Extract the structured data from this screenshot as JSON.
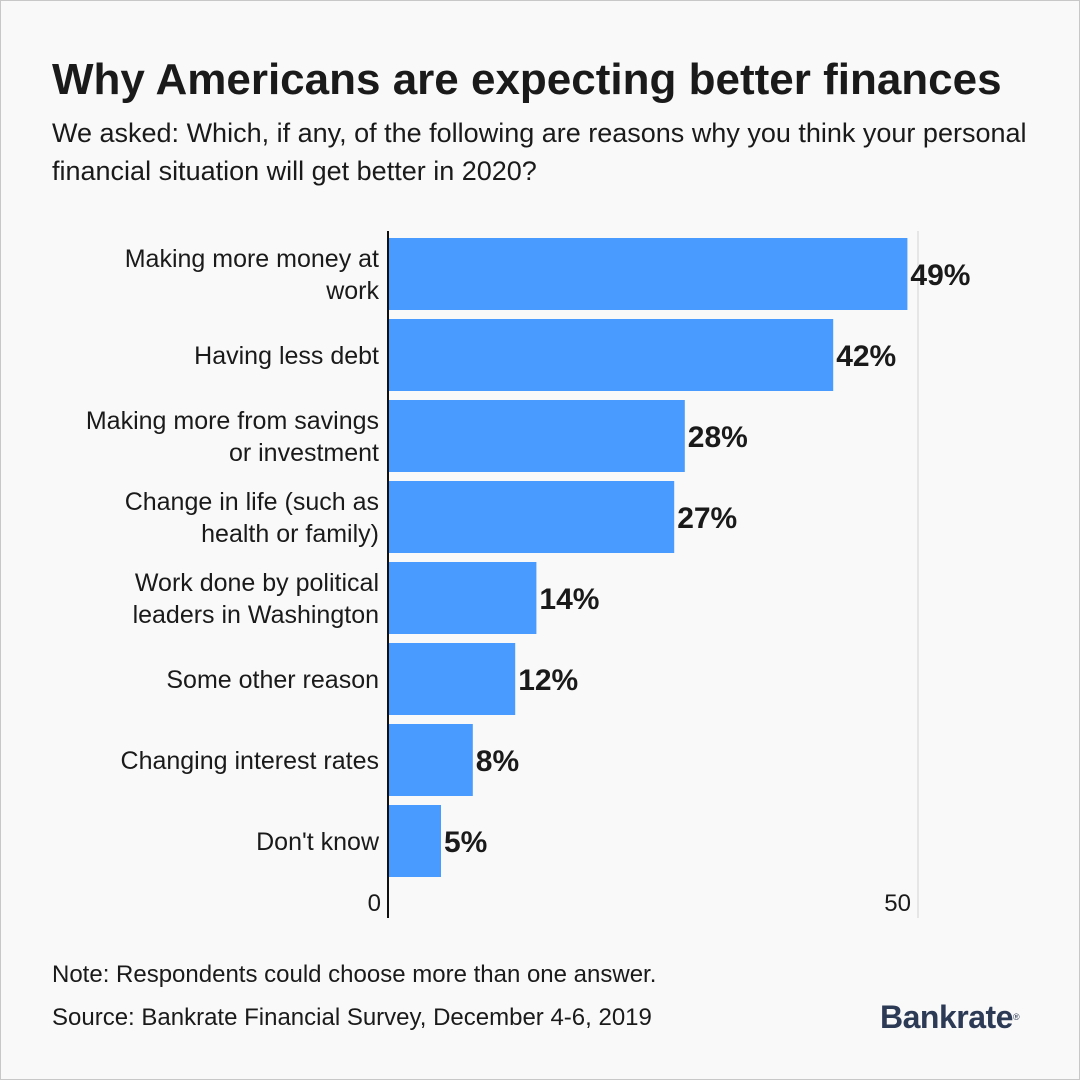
{
  "brand": {
    "name": "Bankrate",
    "mark": "®",
    "color": "#2c3a56"
  },
  "note": "Note: Respondents could choose more than one answer.",
  "source": "Source: Bankrate Financial Survey, December 4-6, 2019",
  "chart_data": {
    "type": "bar",
    "orientation": "horizontal",
    "title": "Why Americans are expecting better finances",
    "subtitle": "We asked: Which, if any, of the following are reasons why you think your personal financial situation will get better in 2020?",
    "categories": [
      [
        "Making more money at",
        "work"
      ],
      [
        "Having less debt"
      ],
      [
        "Making more from savings",
        "or investment"
      ],
      [
        "Change in life (such as",
        "health or family)"
      ],
      [
        "Work done by political",
        "leaders in Washington"
      ],
      [
        "Some other reason"
      ],
      [
        "Changing interest rates"
      ],
      [
        "Don't know"
      ]
    ],
    "values": [
      49,
      42,
      28,
      27,
      14,
      12,
      8,
      5
    ],
    "value_labels": [
      "49%",
      "42%",
      "28%",
      "27%",
      "14%",
      "12%",
      "8%",
      "5%"
    ],
    "xlim": [
      0,
      50
    ],
    "x_ticks": [
      0,
      50
    ],
    "x_tick_labels": [
      "0",
      "50"
    ],
    "bar_color": "#4a9bff",
    "gridlines": true,
    "legend": "none"
  }
}
